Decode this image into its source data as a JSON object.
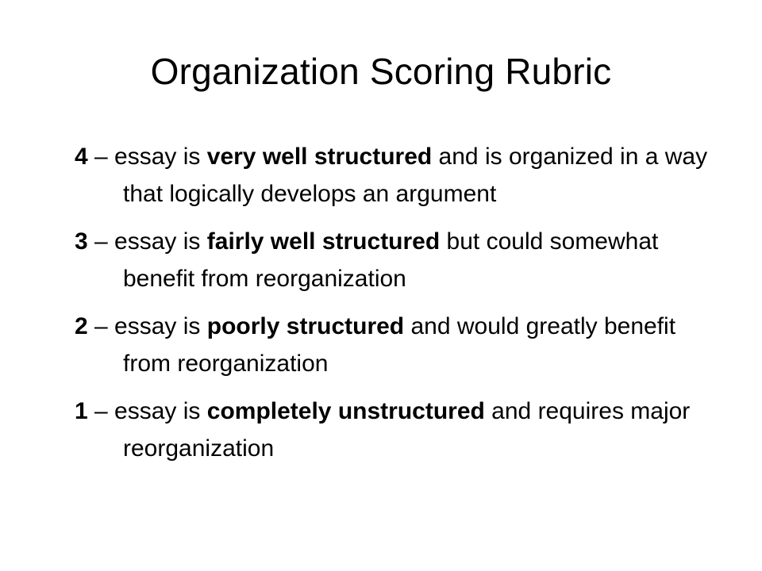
{
  "slide": {
    "title": "Organization Scoring Rubric",
    "levels": [
      {
        "score": "4",
        "dash": " – ",
        "lead": "essay is ",
        "emphasis": "very well structured",
        "rest": " and is organized in a way that logically develops an argument"
      },
      {
        "score": "3",
        "dash": " – ",
        "lead": "essay is ",
        "emphasis": "fairly well structured",
        "rest": " but could somewhat benefit from reorganization"
      },
      {
        "score": "2",
        "dash": " – ",
        "lead": "essay is ",
        "emphasis": "poorly structured",
        "rest": " and would greatly benefit from reorganization"
      },
      {
        "score": "1",
        "dash": " – ",
        "lead": "essay is ",
        "emphasis": "completely unstructured",
        "rest": " and requires major reorganization"
      }
    ]
  }
}
